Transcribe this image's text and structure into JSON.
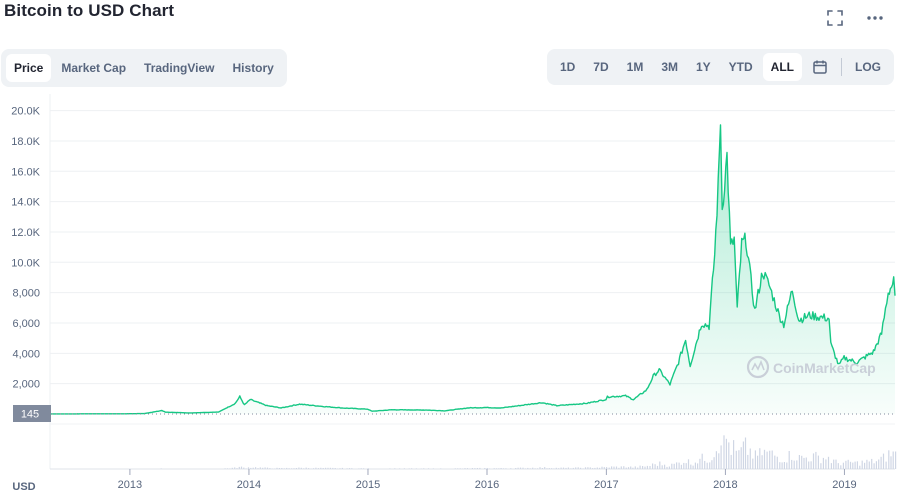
{
  "header": {
    "title": "Bitcoin to USD Chart",
    "fullscreen_icon": "fullscreen-icon",
    "more_icon": "more-horizontal-icon"
  },
  "tabs": [
    {
      "label": "Price",
      "active": true
    },
    {
      "label": "Market Cap",
      "active": false
    },
    {
      "label": "TradingView",
      "active": false
    },
    {
      "label": "History",
      "active": false
    }
  ],
  "ranges": [
    "1D",
    "7D",
    "1M",
    "3M",
    "1Y",
    "YTD",
    "ALL"
  ],
  "active_range": "ALL",
  "calendar_icon": "calendar-icon",
  "log_label": "LOG",
  "currency_label": "USD",
  "watermark": "CoinMarketCap",
  "colors": {
    "line": "#16c784",
    "fill": "#16c784",
    "baseline_marker": "#808a9d",
    "volume": "#cfd6e4"
  },
  "chart_data": {
    "type": "area",
    "title": "",
    "xlabel": "",
    "ylabel": "",
    "y_ticks": [
      2000,
      4000,
      6000,
      8000,
      10000,
      12000,
      14000,
      16000,
      18000,
      20000
    ],
    "y_tick_labels": [
      "2,000",
      "4,000",
      "6,000",
      "8,000",
      "10.0K",
      "12.0K",
      "14.0K",
      "16.0K",
      "18.0K",
      "20.0K"
    ],
    "ylim": [
      0,
      20700
    ],
    "x_ticks": [
      "2013",
      "2014",
      "2015",
      "2016",
      "2017",
      "2018",
      "2019"
    ],
    "xlim": [
      "2012-05-01",
      "2019-06-05"
    ],
    "baseline_label": "145",
    "baseline_value": 145,
    "grid": true,
    "series": [
      {
        "values": [
          [
            "2012-05-01",
            5
          ],
          [
            "2012-08-01",
            10
          ],
          [
            "2012-10-01",
            12
          ],
          [
            "2012-12-15",
            13
          ],
          [
            "2013-02-15",
            30
          ],
          [
            "2013-04-09",
            230
          ],
          [
            "2013-04-20",
            120
          ],
          [
            "2013-07-05",
            70
          ],
          [
            "2013-09-30",
            130
          ],
          [
            "2013-11-20",
            700
          ],
          [
            "2013-12-04",
            1150
          ],
          [
            "2013-12-18",
            600
          ],
          [
            "2014-01-05",
            950
          ],
          [
            "2014-02-25",
            550
          ],
          [
            "2014-04-10",
            400
          ],
          [
            "2014-06-05",
            650
          ],
          [
            "2014-08-15",
            500
          ],
          [
            "2014-10-20",
            390
          ],
          [
            "2014-12-31",
            320
          ],
          [
            "2015-01-14",
            180
          ],
          [
            "2015-03-15",
            280
          ],
          [
            "2015-06-30",
            260
          ],
          [
            "2015-08-25",
            210
          ],
          [
            "2015-11-04",
            400
          ],
          [
            "2015-12-31",
            430
          ],
          [
            "2016-02-15",
            400
          ],
          [
            "2016-06-17",
            750
          ],
          [
            "2016-08-02",
            550
          ],
          [
            "2016-10-31",
            700
          ],
          [
            "2016-12-31",
            960
          ],
          [
            "2017-01-04",
            1130
          ],
          [
            "2017-03-01",
            1200
          ],
          [
            "2017-03-25",
            950
          ],
          [
            "2017-05-05",
            1600
          ],
          [
            "2017-05-25",
            2500
          ],
          [
            "2017-06-12",
            2900
          ],
          [
            "2017-07-15",
            1950
          ],
          [
            "2017-08-10",
            3400
          ],
          [
            "2017-09-01",
            4900
          ],
          [
            "2017-09-15",
            3200
          ],
          [
            "2017-10-20",
            6000
          ],
          [
            "2017-11-12",
            5800
          ],
          [
            "2017-11-29",
            10500
          ],
          [
            "2017-12-10",
            15000
          ],
          [
            "2017-12-17",
            19500
          ],
          [
            "2017-12-22",
            13500
          ],
          [
            "2018-01-06",
            17000
          ],
          [
            "2018-01-17",
            11000
          ],
          [
            "2018-01-28",
            11500
          ],
          [
            "2018-02-06",
            6900
          ],
          [
            "2018-02-20",
            11200
          ],
          [
            "2018-03-05",
            11500
          ],
          [
            "2018-04-01",
            6800
          ],
          [
            "2018-04-25",
            9400
          ],
          [
            "2018-05-15",
            8500
          ],
          [
            "2018-06-15",
            6500
          ],
          [
            "2018-06-29",
            5900
          ],
          [
            "2018-07-25",
            8200
          ],
          [
            "2018-08-14",
            6200
          ],
          [
            "2018-09-15",
            6500
          ],
          [
            "2018-10-15",
            6400
          ],
          [
            "2018-11-15",
            6300
          ],
          [
            "2018-11-20",
            4600
          ],
          [
            "2018-12-15",
            3200
          ],
          [
            "2018-12-31",
            3700
          ],
          [
            "2019-02-08",
            3400
          ],
          [
            "2019-03-31",
            4100
          ],
          [
            "2019-04-25",
            5300
          ],
          [
            "2019-05-15",
            8000
          ],
          [
            "2019-06-01",
            8700
          ],
          [
            "2019-06-05",
            7800
          ]
        ]
      }
    ]
  }
}
